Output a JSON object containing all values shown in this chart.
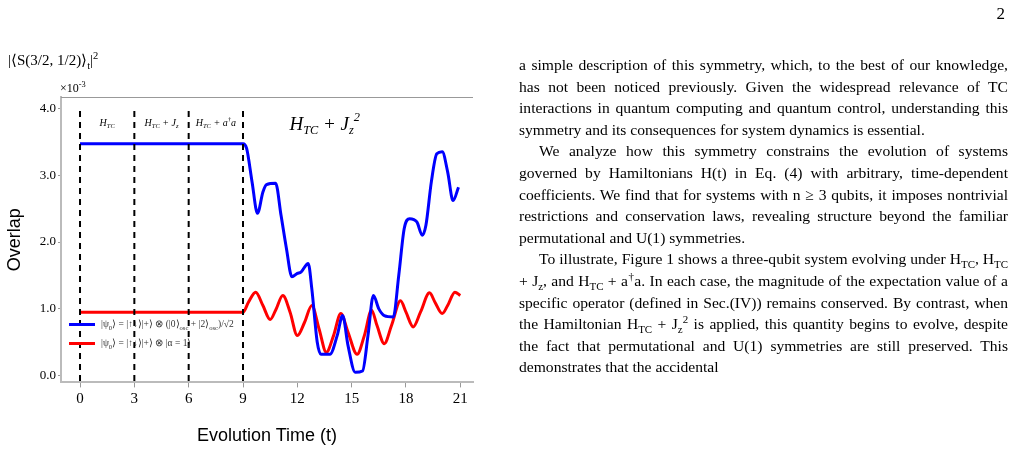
{
  "chart_data": {
    "type": "line",
    "title": "|⟨S(3/2, 1/2)⟩$_{t}$|$^{2}$",
    "xlabel": "Evolution Time (t)",
    "ylabel": "Overlap",
    "xlim": [
      -1.05,
      21.7
    ],
    "ylim": [
      -0.1,
      4.17
    ],
    "xticks": [
      0,
      3,
      6,
      9,
      12,
      15,
      18,
      21
    ],
    "yticks": [
      {
        "value": 0,
        "label": "0.0"
      },
      {
        "value": 1,
        "label": "1.0"
      },
      {
        "value": 2,
        "label": "2.0"
      },
      {
        "value": 3,
        "label": "3.0"
      },
      {
        "value": 4,
        "label": "4.0"
      }
    ],
    "grid": false,
    "legend": "bottom left",
    "marker": "none",
    "line_style": "solid",
    "series": [
      {
        "name": "|ψ$_{0}$⟩ = |↑↓⟩|+⟩ ⊗ (|0⟩$_{osc}$ + |2⟩$_{osc}$)/√2",
        "color": "#0000ff",
        "x": [
          0,
          9,
          9.2,
          9.5,
          9.8,
          10.1,
          10.3,
          10.8,
          11.1,
          11.4,
          11.7,
          12.0,
          12.2,
          12.6,
          12.8,
          13.1,
          13.3,
          13.8,
          14.2,
          14.5,
          14.8,
          15.2,
          15.6,
          15.9,
          16.2,
          16.5,
          16.8,
          17.3,
          17.6,
          17.9,
          18.2,
          18.6,
          18.9,
          19.1,
          19.4,
          19.7,
          20.0,
          20.3,
          20.6,
          20.9
        ],
        "values": [
          3.47,
          3.47,
          3.4,
          2.9,
          2.43,
          2.75,
          2.86,
          2.88,
          2.4,
          1.9,
          1.48,
          1.53,
          1.55,
          1.68,
          1.3,
          0.5,
          0.32,
          0.32,
          0.6,
          0.9,
          0.45,
          0.05,
          0.07,
          0.6,
          1.2,
          1.0,
          0.9,
          0.88,
          1.5,
          2.2,
          2.35,
          2.3,
          2.1,
          2.25,
          2.9,
          3.32,
          3.35,
          3.05,
          2.62,
          2.82
        ]
      },
      {
        "name": "|ψ$_{0}$⟩ = |↑↓⟩|+⟩ ⊗ |α = 1⟩",
        "color": "#ff0000",
        "x": [
          0,
          9,
          9.3,
          9.7,
          10.1,
          10.5,
          10.8,
          11.2,
          11.6,
          12.0,
          12.4,
          12.8,
          13.2,
          13.6,
          14.0,
          14.4,
          14.8,
          15.3,
          15.7,
          16.1,
          16.4,
          16.8,
          17.2,
          17.7,
          18.0,
          18.4,
          18.8,
          19.3,
          19.6,
          20.0,
          20.3,
          20.7,
          21.0
        ],
        "values": [
          0.95,
          0.95,
          1.1,
          1.25,
          1.05,
          0.84,
          0.98,
          1.2,
          0.95,
          0.6,
          0.8,
          1.05,
          0.7,
          0.35,
          0.6,
          0.93,
          0.65,
          0.32,
          0.6,
          0.98,
          0.75,
          0.48,
          0.75,
          1.12,
          0.95,
          0.73,
          0.95,
          1.24,
          1.1,
          0.93,
          1.05,
          1.25,
          1.2
        ]
      }
    ],
    "ref_lines": [
      {
        "axis": "x",
        "value": 0,
        "color": "#000000",
        "line_style": "dashed",
        "label": "H$_{TC}$"
      },
      {
        "axis": "x",
        "value": 3,
        "color": "#000000",
        "line_style": "dashed",
        "label": "H$_{TC}$ + J$_{z}$"
      },
      {
        "axis": "x",
        "value": 6,
        "color": "#000000",
        "line_style": "dashed",
        "label": "H$_{TC}$ + a$^{†}$a"
      },
      {
        "axis": "x",
        "value": 9,
        "color": "#000000",
        "line_style": "dashed"
      }
    ],
    "annotations": [
      "×10$^{-3}$",
      "2",
      "H$_{TC}$ + J$_{z}$$^{2}$",
      "a simple description of this symmetry, which, to the best of our knowledge, has not been noticed previously. Given the widespread relevance of TC interactions in quantum computing and quantum control, understanding this symmetry and its consequences for system dynamics is essential.",
      "We analyze how this symmetry constrains the evolution of systems governed by Hamiltonians H(t) in Eq. (4) with arbitrary, time-dependent coefficients. We find that for systems with n ≥ 3 qubits, it imposes nontrivial restrictions and conservation laws, revealing structure beyond the familiar permutational and U(1) symmetries.",
      "To illustrate, Figure 1 shows a three-qubit system evolving under H$_{TC}$, H$_{TC}$ + J$_{z}$, and H$_{TC}$ + a$^{†}$a. In each case, the magnitude of the expectation value of a specific operator (defined in Sec.(IV)) remains conserved. By contrast, when the Hamiltonian H$_{TC}$ + J$_{z}$$^{2}$ is applied, this quantity begins to evolve, despite the fact that permutational and U(1) symmetries are still preserved. This demonstrates that the accidental"
    ]
  }
}
